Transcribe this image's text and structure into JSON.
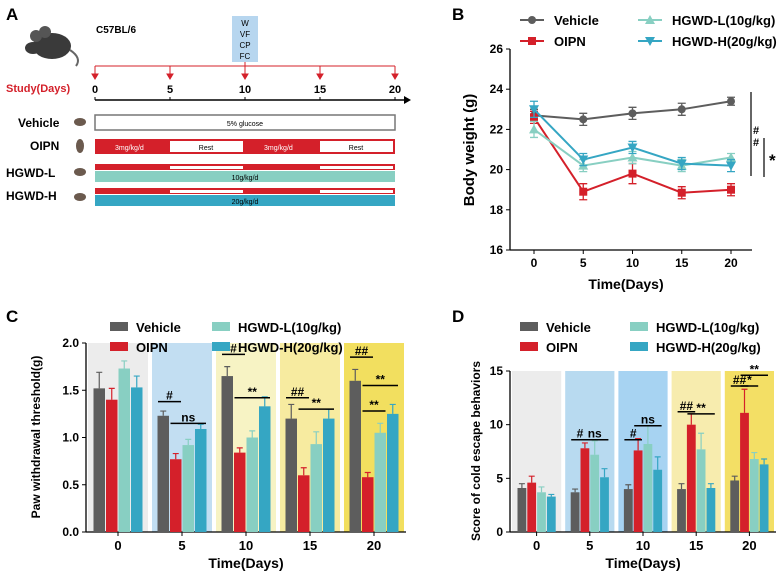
{
  "colors": {
    "vehicle": "#5d5d5d",
    "oipn": "#d4202a",
    "hgwd_l": "#88cfc2",
    "hgwd_h": "#35a6c3",
    "bg": [
      "#ececec",
      "#b8daf0",
      "#a7d3f2",
      "#f7ecae",
      "#f3df65"
    ],
    "bgA": [
      "#ececec",
      "#c2def2",
      "#f7f3c4",
      "#f7eba0",
      "#f2df5f"
    ]
  },
  "panels": {
    "A": "A",
    "B": "B",
    "C": "C",
    "D": "D"
  },
  "panelA": {
    "mouse_strain": "C57BL/6",
    "tests": [
      "W",
      "VF",
      "CP",
      "FC"
    ],
    "study_label": "Study(Days)",
    "days": [
      "0",
      "5",
      "10",
      "15",
      "20"
    ],
    "rows": [
      {
        "name": "Vehicle",
        "segments": [
          {
            "label": "5% glucose",
            "style": "outline"
          }
        ]
      },
      {
        "name": "OIPN",
        "segments": [
          {
            "label": "3mg/kg/d",
            "style": "red"
          },
          {
            "label": "Rest",
            "style": "white"
          },
          {
            "label": "3mg/kg/d",
            "style": "red"
          },
          {
            "label": "Rest",
            "style": "white"
          }
        ]
      },
      {
        "name": "HGWD-L",
        "segments": [
          {
            "label": "10g/kg/d",
            "style": "teal"
          }
        ]
      },
      {
        "name": "HGWD-H",
        "segments": [
          {
            "label": "20g/kg/d",
            "style": "blue"
          }
        ]
      }
    ]
  },
  "chart_data": [
    {
      "id": "B",
      "type": "line",
      "ylabel": "Body weight (g)",
      "xlabel": "Time(Days)",
      "x": [
        0,
        5,
        10,
        15,
        20
      ],
      "ylim": [
        16,
        26
      ],
      "yticks": [
        16,
        18,
        20,
        22,
        24,
        26
      ],
      "legend": [
        "Vehicle",
        "OIPN",
        "HGWD-L(10g/kg)",
        "HGWD-H(20g/kg)"
      ],
      "series": [
        {
          "name": "Vehicle",
          "key": "vehicle",
          "marker": "circle",
          "values": [
            22.7,
            22.5,
            22.8,
            23.0,
            23.4
          ],
          "err": [
            0.3,
            0.3,
            0.3,
            0.3,
            0.2
          ]
        },
        {
          "name": "OIPN",
          "key": "oipn",
          "marker": "square",
          "values": [
            22.6,
            18.9,
            19.8,
            18.85,
            19.0
          ],
          "err": [
            0.3,
            0.4,
            0.5,
            0.3,
            0.3
          ]
        },
        {
          "name": "HGWD-L(10g/kg)",
          "key": "hgwd_l",
          "marker": "triangle-up",
          "values": [
            22.0,
            20.2,
            20.6,
            20.2,
            20.6
          ],
          "err": [
            0.4,
            0.3,
            0.3,
            0.3,
            0.2
          ]
        },
        {
          "name": "HGWD-H(20g/kg)",
          "key": "hgwd_h",
          "marker": "triangle-down",
          "values": [
            23.0,
            20.5,
            21.1,
            20.3,
            20.2
          ],
          "err": [
            0.4,
            0.3,
            0.3,
            0.3,
            0.3
          ]
        }
      ],
      "annotations": [
        "#",
        "#",
        "*"
      ]
    },
    {
      "id": "C",
      "type": "bar",
      "ylabel": "Paw withdrawal threshold(g)",
      "xlabel": "Time(Days)",
      "categories": [
        "0",
        "5",
        "10",
        "15",
        "20"
      ],
      "ylim": [
        0,
        2.0
      ],
      "yticks": [
        "0.0",
        "0.5",
        "1.0",
        "1.5",
        "2.0"
      ],
      "legend": [
        "Vehicle",
        "OIPN",
        "HGWD-L(10g/kg)",
        "HGWD-H(20g/kg)"
      ],
      "series": [
        {
          "name": "Vehicle",
          "key": "vehicle",
          "values": [
            1.52,
            1.23,
            1.65,
            1.2,
            1.6
          ],
          "err": [
            0.17,
            0.05,
            0.1,
            0.15,
            0.12
          ]
        },
        {
          "name": "OIPN",
          "key": "oipn",
          "values": [
            1.4,
            0.77,
            0.84,
            0.6,
            0.58
          ],
          "err": [
            0.12,
            0.06,
            0.05,
            0.08,
            0.05
          ]
        },
        {
          "name": "HGWD-L(10g/kg)",
          "key": "hgwd_l",
          "values": [
            1.73,
            0.92,
            1.0,
            0.93,
            1.05
          ],
          "err": [
            0.08,
            0.06,
            0.07,
            0.13,
            0.1
          ]
        },
        {
          "name": "HGWD-H(20g/kg)",
          "key": "hgwd_h",
          "values": [
            1.53,
            1.09,
            1.33,
            1.2,
            1.25
          ],
          "err": [
            0.12,
            0.05,
            0.1,
            0.1,
            0.1
          ]
        }
      ],
      "sig": [
        {
          "group": 1,
          "from": 0,
          "to": 1,
          "label": "#",
          "y": 1.38
        },
        {
          "group": 1,
          "from": 1,
          "to": 3,
          "label": "ns",
          "y": 1.15
        },
        {
          "group": 2,
          "from": 0,
          "to": 1,
          "label": "#",
          "y": 1.88
        },
        {
          "group": 2,
          "from": 1,
          "to": 3,
          "label": "**",
          "y": 1.42
        },
        {
          "group": 3,
          "from": 0,
          "to": 1,
          "label": "##",
          "y": 1.42
        },
        {
          "group": 3,
          "from": 1,
          "to": 3,
          "label": "**",
          "y": 1.3
        },
        {
          "group": 4,
          "from": 0,
          "to": 1,
          "label": "##",
          "y": 1.85
        },
        {
          "group": 4,
          "from": 1,
          "to": 3,
          "label": "**",
          "y": 1.55
        },
        {
          "group": 4,
          "from": 1,
          "to": 2,
          "label": "**",
          "y": 1.28
        }
      ]
    },
    {
      "id": "D",
      "type": "bar",
      "ylabel": "Score of cold escape behaviors",
      "xlabel": "Time(Days)",
      "categories": [
        "0",
        "5",
        "10",
        "15",
        "20"
      ],
      "ylim": [
        0,
        15
      ],
      "yticks": [
        "0",
        "5",
        "10",
        "15"
      ],
      "legend": [
        "Vehicle",
        "OIPN",
        "HGWD-L(10g/kg)",
        "HGWD-H(20g/kg)"
      ],
      "series": [
        {
          "name": "Vehicle",
          "key": "vehicle",
          "values": [
            4.1,
            3.7,
            4.0,
            4.0,
            4.8
          ],
          "err": [
            0.4,
            0.3,
            0.4,
            0.5,
            0.4
          ]
        },
        {
          "name": "OIPN",
          "key": "oipn",
          "values": [
            4.6,
            7.8,
            7.6,
            10.0,
            11.1
          ],
          "err": [
            0.6,
            0.5,
            1.1,
            1.0,
            2.2
          ]
        },
        {
          "name": "HGWD-L(10g/kg)",
          "key": "hgwd_l",
          "values": [
            3.7,
            7.2,
            8.2,
            7.7,
            6.8
          ],
          "err": [
            0.5,
            1.3,
            1.7,
            1.5,
            0.6
          ]
        },
        {
          "name": "HGWD-H(20g/kg)",
          "key": "hgwd_h",
          "values": [
            3.3,
            5.1,
            5.8,
            4.1,
            6.3
          ],
          "err": [
            0.2,
            0.8,
            1.2,
            0.4,
            0.5
          ]
        }
      ],
      "sig": [
        {
          "group": 1,
          "from": 0,
          "to": 1,
          "label": "#",
          "y": 8.6
        },
        {
          "group": 1,
          "from": 1,
          "to": 3,
          "label": "ns",
          "y": 8.6
        },
        {
          "group": 2,
          "from": 0,
          "to": 1,
          "label": "#",
          "y": 8.6
        },
        {
          "group": 2,
          "from": 1,
          "to": 3,
          "label": "ns",
          "y": 9.9
        },
        {
          "group": 3,
          "from": 0,
          "to": 1,
          "label": "##",
          "y": 11.2
        },
        {
          "group": 3,
          "from": 1,
          "to": 3,
          "label": "**",
          "y": 11.0
        },
        {
          "group": 4,
          "from": 0,
          "to": 1,
          "label": "##",
          "y": 13.6
        },
        {
          "group": 4,
          "from": 1,
          "to": 2,
          "label": "*",
          "y": 13.6
        },
        {
          "group": 4,
          "from": 1,
          "to": 3,
          "label": "**",
          "y": 14.6
        }
      ]
    }
  ]
}
